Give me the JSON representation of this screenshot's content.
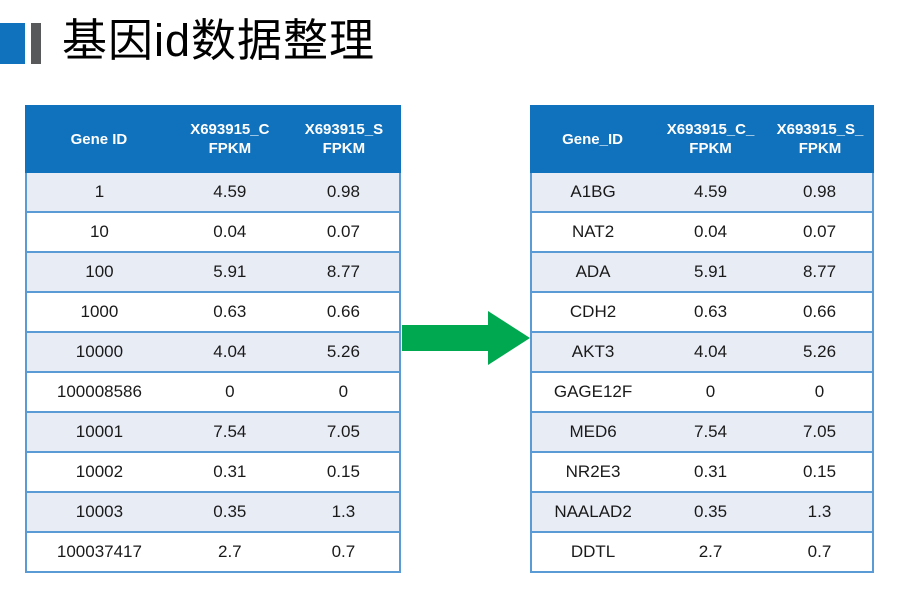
{
  "title": {
    "text": "基因id数据整理"
  },
  "colors": {
    "header_bg": "#1072BC",
    "band_row": "#E8ECF5",
    "table_border": "#5B9BD5",
    "arrow_green": "#00A94F",
    "title_accent_blue": "#1072BC",
    "title_accent_gray": "#58595B"
  },
  "left_table": {
    "headers": [
      "Gene ID",
      "X693915_C\nFPKM",
      "X693915_S\nFPKM"
    ],
    "rows": [
      [
        "1",
        "4.59",
        "0.98"
      ],
      [
        "10",
        "0.04",
        "0.07"
      ],
      [
        "100",
        "5.91",
        "8.77"
      ],
      [
        "1000",
        "0.63",
        "0.66"
      ],
      [
        "10000",
        "4.04",
        "5.26"
      ],
      [
        "100008586",
        "0",
        "0"
      ],
      [
        "10001",
        "7.54",
        "7.05"
      ],
      [
        "10002",
        "0.31",
        "0.15"
      ],
      [
        "10003",
        "0.35",
        "1.3"
      ],
      [
        "100037417",
        "2.7",
        "0.7"
      ]
    ]
  },
  "right_table": {
    "headers": [
      "Gene_ID",
      "X693915_C_\nFPKM",
      "X693915_S_\nFPKM"
    ],
    "rows": [
      [
        "A1BG",
        "4.59",
        "0.98"
      ],
      [
        "NAT2",
        "0.04",
        "0.07"
      ],
      [
        "ADA",
        "5.91",
        "8.77"
      ],
      [
        "CDH2",
        "0.63",
        "0.66"
      ],
      [
        "AKT3",
        "4.04",
        "5.26"
      ],
      [
        "GAGE12F",
        "0",
        "0"
      ],
      [
        "MED6",
        "7.54",
        "7.05"
      ],
      [
        "NR2E3",
        "0.31",
        "0.15"
      ],
      [
        "NAALAD2",
        "0.35",
        "1.3"
      ],
      [
        "DDTL",
        "2.7",
        "0.7"
      ]
    ]
  }
}
